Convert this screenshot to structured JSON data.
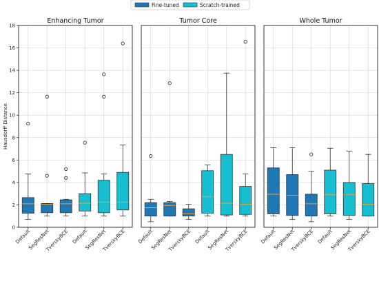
{
  "chart_data": {
    "type": "boxplot",
    "ylabel": "Hausdorff Distance",
    "ylim": [
      0,
      18
    ],
    "yticks": [
      0,
      2,
      4,
      6,
      8,
      10,
      12,
      14,
      16,
      18
    ],
    "grid": true,
    "legend_position": "top-center",
    "legend": [
      {
        "name": "Fine-tuned",
        "color": "#1f77b4"
      },
      {
        "name": "Scratch-trained",
        "color": "#17becf"
      }
    ],
    "median_color": "#e8a03c",
    "categories": [
      "Default",
      "SegResNet",
      "TverskyBCE",
      "Default",
      "SegResNet",
      "TverskyBCE"
    ],
    "panels": [
      {
        "title": "Enhancing Tumor",
        "boxes": [
          {
            "group": "Fine-tuned",
            "min": 0.7,
            "q1": 1.25,
            "median": 2.1,
            "q3": 2.65,
            "max": 4.75,
            "outliers": [
              9.25
            ]
          },
          {
            "group": "Fine-tuned",
            "min": 1.0,
            "q1": 1.3,
            "median": 2.05,
            "q3": 2.12,
            "max": 2.12,
            "outliers": [
              4.6,
              11.65
            ]
          },
          {
            "group": "Fine-tuned",
            "min": 1.0,
            "q1": 1.3,
            "median": 2.1,
            "q3": 2.45,
            "max": 2.5,
            "outliers": [
              4.4,
              5.2
            ]
          },
          {
            "group": "Scratch-trained",
            "min": 1.0,
            "q1": 1.45,
            "median": 2.15,
            "q3": 3.0,
            "max": 4.85,
            "outliers": [
              7.55
            ]
          },
          {
            "group": "Scratch-trained",
            "min": 1.0,
            "q1": 1.3,
            "median": 2.25,
            "q3": 4.2,
            "max": 4.75,
            "outliers": [
              11.65,
              13.65
            ]
          },
          {
            "group": "Scratch-trained",
            "min": 1.0,
            "q1": 1.55,
            "median": 2.25,
            "q3": 4.9,
            "max": 7.35,
            "outliers": [
              16.4
            ]
          }
        ]
      },
      {
        "title": "Tumor Core",
        "boxes": [
          {
            "group": "Fine-tuned",
            "min": 0.5,
            "q1": 1.0,
            "median": 1.75,
            "q3": 2.2,
            "max": 2.5,
            "outliers": [
              6.35
            ]
          },
          {
            "group": "Fine-tuned",
            "min": 1.0,
            "q1": 1.0,
            "median": 1.95,
            "q3": 2.2,
            "max": 2.3,
            "outliers": [
              12.85
            ]
          },
          {
            "group": "Fine-tuned",
            "min": 0.7,
            "q1": 1.0,
            "median": 1.2,
            "q3": 1.65,
            "max": 2.05,
            "outliers": []
          },
          {
            "group": "Scratch-trained",
            "min": 1.0,
            "q1": 1.25,
            "median": 2.75,
            "q3": 5.05,
            "max": 5.55,
            "outliers": []
          },
          {
            "group": "Scratch-trained",
            "min": 1.0,
            "q1": 1.1,
            "median": 2.15,
            "q3": 6.5,
            "max": 13.75,
            "outliers": []
          },
          {
            "group": "Scratch-trained",
            "min": 1.0,
            "q1": 1.15,
            "median": 2.05,
            "q3": 3.65,
            "max": 4.75,
            "outliers": [
              16.55
            ]
          }
        ]
      },
      {
        "title": "Whole Tumor",
        "boxes": [
          {
            "group": "Fine-tuned",
            "min": 1.0,
            "q1": 1.2,
            "median": 2.95,
            "q3": 5.3,
            "max": 7.1,
            "outliers": []
          },
          {
            "group": "Fine-tuned",
            "min": 0.7,
            "q1": 1.05,
            "median": 2.85,
            "q3": 4.7,
            "max": 7.1,
            "outliers": []
          },
          {
            "group": "Fine-tuned",
            "min": 0.5,
            "q1": 1.0,
            "median": 2.1,
            "q3": 2.95,
            "max": 5.0,
            "outliers": [
              6.5
            ]
          },
          {
            "group": "Scratch-trained",
            "min": 1.0,
            "q1": 1.2,
            "median": 2.9,
            "q3": 5.1,
            "max": 7.05,
            "outliers": []
          },
          {
            "group": "Scratch-trained",
            "min": 0.7,
            "q1": 1.05,
            "median": 2.9,
            "q3": 4.0,
            "max": 6.8,
            "outliers": []
          },
          {
            "group": "Scratch-trained",
            "min": 1.0,
            "q1": 1.0,
            "median": 2.05,
            "q3": 3.9,
            "max": 6.5,
            "outliers": []
          }
        ]
      }
    ]
  }
}
